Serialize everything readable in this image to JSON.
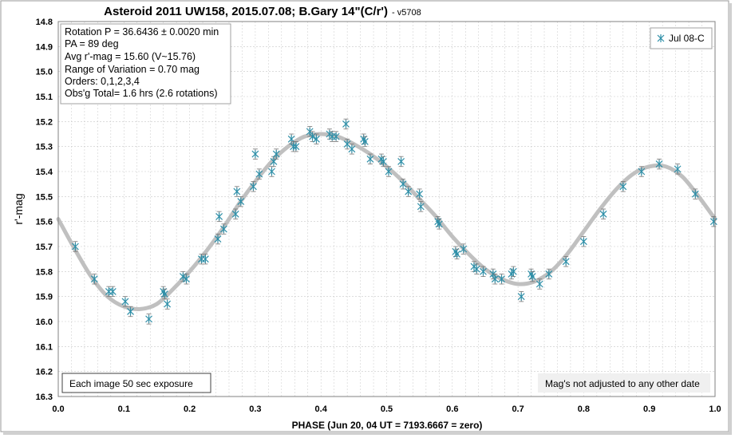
{
  "title": "Asteroid 2011 UW158, 2015.07.08; B.Gary 14\"(C/r')",
  "title_version": "- v5708",
  "info_box": [
    "Rotation P = 36.6436 ± 0.0020 min",
    "PA =  89 deg",
    "Avg r'-mag = 15.60 (V~15.76)",
    "Range of Variation = 0.70 mag",
    "Orders: 0,1,2,3,4",
    "Obs'g Total= 1.6 hrs (2.6 rotations)"
  ],
  "note_left": "Each image 50 sec exposure",
  "note_right": "Mag's not adjusted to any other date",
  "colors": {
    "marker": "#2e8fa8",
    "fit": "#c0c0c0",
    "grid": "#c8c8c8"
  },
  "chart_data": {
    "type": "scatter",
    "xlabel": "PHASE (Jun 20, 04 UT = 7193.6667 = zero)",
    "ylabel": "r'-mag",
    "xlim": [
      0.0,
      1.0
    ],
    "ylim": [
      14.8,
      16.3
    ],
    "y_inverted": true,
    "xticks": [
      "0.0",
      "0.1",
      "0.2",
      "0.3",
      "0.4",
      "0.5",
      "0.6",
      "0.7",
      "0.8",
      "0.9",
      "1.0"
    ],
    "yticks": [
      "14.8",
      "14.9",
      "15.0",
      "15.1",
      "15.2",
      "15.3",
      "15.4",
      "15.5",
      "15.6",
      "15.7",
      "15.8",
      "15.9",
      "16.0",
      "16.1",
      "16.2",
      "16.3"
    ],
    "grid": true,
    "legend_position": "top-right",
    "series": [
      {
        "name": "Jul 08-C",
        "marker": "asterisk",
        "error": 0.02,
        "points": [
          [
            0.026,
            15.7
          ],
          [
            0.055,
            15.83
          ],
          [
            0.077,
            15.88
          ],
          [
            0.083,
            15.88
          ],
          [
            0.102,
            15.92
          ],
          [
            0.11,
            15.96
          ],
          [
            0.138,
            15.99
          ],
          [
            0.16,
            15.88
          ],
          [
            0.162,
            15.89
          ],
          [
            0.166,
            15.93
          ],
          [
            0.19,
            15.82
          ],
          [
            0.195,
            15.83
          ],
          [
            0.218,
            15.75
          ],
          [
            0.224,
            15.75
          ],
          [
            0.243,
            15.67
          ],
          [
            0.245,
            15.58
          ],
          [
            0.252,
            15.63
          ],
          [
            0.27,
            15.57
          ],
          [
            0.272,
            15.48
          ],
          [
            0.278,
            15.52
          ],
          [
            0.297,
            15.46
          ],
          [
            0.3,
            15.33
          ],
          [
            0.306,
            15.41
          ],
          [
            0.325,
            15.4
          ],
          [
            0.328,
            15.36
          ],
          [
            0.332,
            15.33
          ],
          [
            0.355,
            15.27
          ],
          [
            0.358,
            15.3
          ],
          [
            0.362,
            15.3
          ],
          [
            0.383,
            15.24
          ],
          [
            0.387,
            15.26
          ],
          [
            0.393,
            15.27
          ],
          [
            0.413,
            15.25
          ],
          [
            0.417,
            15.26
          ],
          [
            0.423,
            15.26
          ],
          [
            0.438,
            15.21
          ],
          [
            0.44,
            15.29
          ],
          [
            0.447,
            15.31
          ],
          [
            0.465,
            15.27
          ],
          [
            0.467,
            15.28
          ],
          [
            0.475,
            15.35
          ],
          [
            0.492,
            15.35
          ],
          [
            0.495,
            15.36
          ],
          [
            0.503,
            15.4
          ],
          [
            0.522,
            15.36
          ],
          [
            0.525,
            15.45
          ],
          [
            0.533,
            15.48
          ],
          [
            0.55,
            15.49
          ],
          [
            0.552,
            15.54
          ],
          [
            0.578,
            15.6
          ],
          [
            0.58,
            15.61
          ],
          [
            0.605,
            15.72
          ],
          [
            0.607,
            15.73
          ],
          [
            0.617,
            15.71
          ],
          [
            0.633,
            15.78
          ],
          [
            0.637,
            15.79
          ],
          [
            0.647,
            15.8
          ],
          [
            0.662,
            15.81
          ],
          [
            0.665,
            15.83
          ],
          [
            0.675,
            15.83
          ],
          [
            0.69,
            15.81
          ],
          [
            0.693,
            15.8
          ],
          [
            0.705,
            15.9
          ],
          [
            0.72,
            15.81
          ],
          [
            0.722,
            15.82
          ],
          [
            0.733,
            15.85
          ],
          [
            0.747,
            15.81
          ],
          [
            0.773,
            15.76
          ],
          [
            0.8,
            15.68
          ],
          [
            0.83,
            15.57
          ],
          [
            0.86,
            15.46
          ],
          [
            0.888,
            15.4
          ],
          [
            0.915,
            15.37
          ],
          [
            0.943,
            15.39
          ],
          [
            0.97,
            15.49
          ],
          [
            0.998,
            15.6
          ]
        ]
      },
      {
        "name": "fit",
        "type": "line",
        "x": [
          0.0,
          0.025,
          0.05,
          0.075,
          0.1,
          0.125,
          0.15,
          0.175,
          0.2,
          0.225,
          0.25,
          0.275,
          0.3,
          0.325,
          0.35,
          0.375,
          0.4,
          0.425,
          0.45,
          0.475,
          0.5,
          0.525,
          0.55,
          0.575,
          0.6,
          0.625,
          0.65,
          0.675,
          0.7,
          0.725,
          0.75,
          0.775,
          0.8,
          0.825,
          0.85,
          0.875,
          0.9,
          0.925,
          0.95,
          0.975,
          1.0
        ],
        "y": [
          15.59,
          15.71,
          15.82,
          15.9,
          15.94,
          15.95,
          15.93,
          15.87,
          15.8,
          15.72,
          15.63,
          15.53,
          15.44,
          15.36,
          15.3,
          15.26,
          15.25,
          15.26,
          15.29,
          15.33,
          15.38,
          15.44,
          15.51,
          15.58,
          15.66,
          15.73,
          15.79,
          15.83,
          15.85,
          15.84,
          15.8,
          15.73,
          15.64,
          15.55,
          15.47,
          15.41,
          15.38,
          15.38,
          15.42,
          15.5,
          15.59
        ]
      }
    ]
  }
}
